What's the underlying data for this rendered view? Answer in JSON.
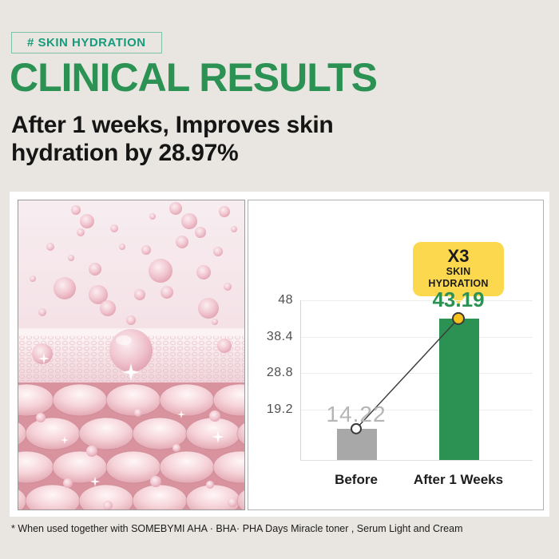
{
  "page": {
    "background": "#e9e6e1",
    "hash_badge": "# SKIN HYDRATION",
    "title": "CLINICAL RESULTS",
    "subtitle_lines": [
      "After 1 weeks, Improves skin",
      "hydration by 28.97%"
    ],
    "footnote": "* When used together with SOMEBYMI AHA · BHA· PHA Days Miracle toner , Serum Light and Cream",
    "colors": {
      "accent_green": "#2b9254",
      "badge_teal": "#169c7c",
      "text_black": "#151515"
    }
  },
  "left_panel": {
    "alt": "3D illustration of pink moisture droplets absorbing into layered skin cells"
  },
  "chart_data": {
    "type": "bar",
    "badge": {
      "line1": "X3",
      "line2": "SKIN HYDRATION",
      "bg_color": "#fbd84e"
    },
    "categories": [
      "Before",
      "After 1 Weeks"
    ],
    "values": [
      14.22,
      43.19
    ],
    "value_labels": [
      "14.22",
      "43.19"
    ],
    "bar_colors": [
      "#a8a8a8",
      "#2b9254"
    ],
    "value_label_colors": [
      "#b5b5b5",
      "#2b9254"
    ],
    "yticks": [
      48,
      38.4,
      28.8,
      19.2
    ],
    "ylim": [
      6,
      48
    ],
    "grid": true,
    "legend": false,
    "connector_marker_fills": [
      "#ffffff",
      "#f6c21b"
    ],
    "connector_marker_outline": "#3a3a3a",
    "connector_line_color": "#3a3a3a"
  }
}
